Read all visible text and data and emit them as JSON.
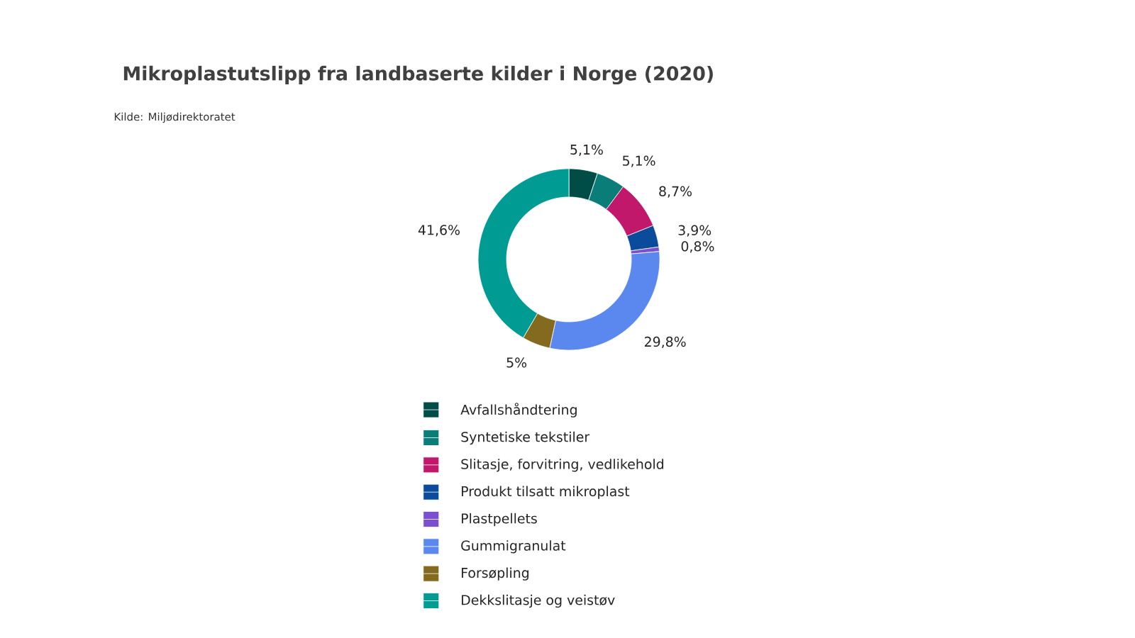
{
  "chart_data": {
    "type": "donut",
    "title": "Mikroplastutslipp fra landbaserte kilder i Norge (2020)",
    "annotations": [
      "Kilde:  Miljødirektoratet"
    ],
    "categories": [
      "Avfallshåndtering",
      "Syntetiske tekstiler",
      "Slitasje, forvitring, vedlikehold",
      "Produkt tilsatt mikroplast",
      "Plastpellets",
      "Gummigranulat",
      "Forsøpling",
      "Dekkslitasje og veistøv"
    ],
    "values": [
      5.1,
      5.1,
      8.7,
      3.9,
      0.8,
      29.8,
      5,
      41.6
    ],
    "value_labels": [
      "5,1%",
      "5,1%",
      "8,7%",
      "3,9%",
      "0,8%",
      "29,8%",
      "5%",
      "41,6%"
    ],
    "colors": [
      "#004d48",
      "#0b7d78",
      "#c2186b",
      "#0a4b9b",
      "#7a4fd0",
      "#5b88ef",
      "#836a1e",
      "#009c94"
    ],
    "legend": "bottom"
  }
}
